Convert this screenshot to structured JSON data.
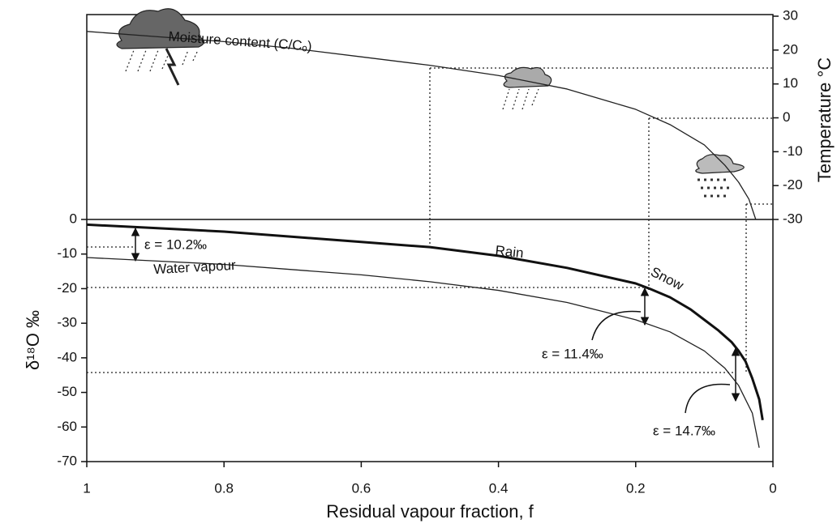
{
  "chart_data": {
    "type": "line",
    "xlabel": "Residual vapour fraction, f",
    "ylabel": "δ¹⁸O ‰",
    "y2label": "Temperature °C",
    "xlim": [
      1,
      0
    ],
    "xticks": [
      1,
      0.8,
      0.6,
      0.4,
      0.2,
      0
    ],
    "ylim": [
      -70,
      0
    ],
    "yticks": [
      0,
      -10,
      -20,
      -30,
      -40,
      -50,
      -60,
      -70
    ],
    "y2lim": [
      -30,
      30
    ],
    "y2ticks": [
      30,
      20,
      10,
      0,
      -10,
      -20,
      -30
    ],
    "series": [
      {
        "name": "Moisture content (C/Cₒ)",
        "color": "#222",
        "line_width": 1.3,
        "axis": "y2",
        "x": [
          1,
          0.9,
          0.8,
          0.7,
          0.6,
          0.5,
          0.4,
          0.3,
          0.2,
          0.15,
          0.1,
          0.07,
          0.05,
          0.035,
          0.025
        ],
        "values": [
          25.5,
          24,
          22.5,
          20.5,
          18,
          15.5,
          12.5,
          8.5,
          2.5,
          -2,
          -8,
          -14,
          -19,
          -24,
          -30
        ]
      },
      {
        "name": "Rain",
        "color": "#111",
        "line_width": 3,
        "x": [
          1,
          0.9,
          0.8,
          0.7,
          0.6,
          0.5,
          0.4,
          0.3,
          0.2,
          0.18
        ],
        "values": [
          -1.5,
          -2.5,
          -3.5,
          -5,
          -6.5,
          -8,
          -10.5,
          -14,
          -18.5,
          -20
        ]
      },
      {
        "name": "Water vapour",
        "color": "#222",
        "line_width": 1.3,
        "x": [
          1,
          0.9,
          0.8,
          0.7,
          0.6,
          0.5,
          0.4,
          0.3,
          0.2,
          0.15,
          0.1,
          0.07,
          0.05,
          0.03,
          0.02
        ],
        "values": [
          -11,
          -12,
          -13,
          -14.5,
          -16,
          -18,
          -20.5,
          -24,
          -29,
          -32.5,
          -38,
          -43,
          -48,
          -56,
          -66
        ]
      },
      {
        "name": "Snow",
        "color": "#111",
        "line_width": 3,
        "x": [
          0.18,
          0.15,
          0.12,
          0.1,
          0.08,
          0.06,
          0.05,
          0.04,
          0.03,
          0.02,
          0.015
        ],
        "values": [
          -20,
          -22.5,
          -26,
          -29,
          -32,
          -35.5,
          -38,
          -41,
          -46,
          -52,
          -58
        ]
      }
    ],
    "annotations": [
      "ε = 10.2‰",
      "ε = 11.4‰",
      "ε = 14.7‰"
    ]
  }
}
